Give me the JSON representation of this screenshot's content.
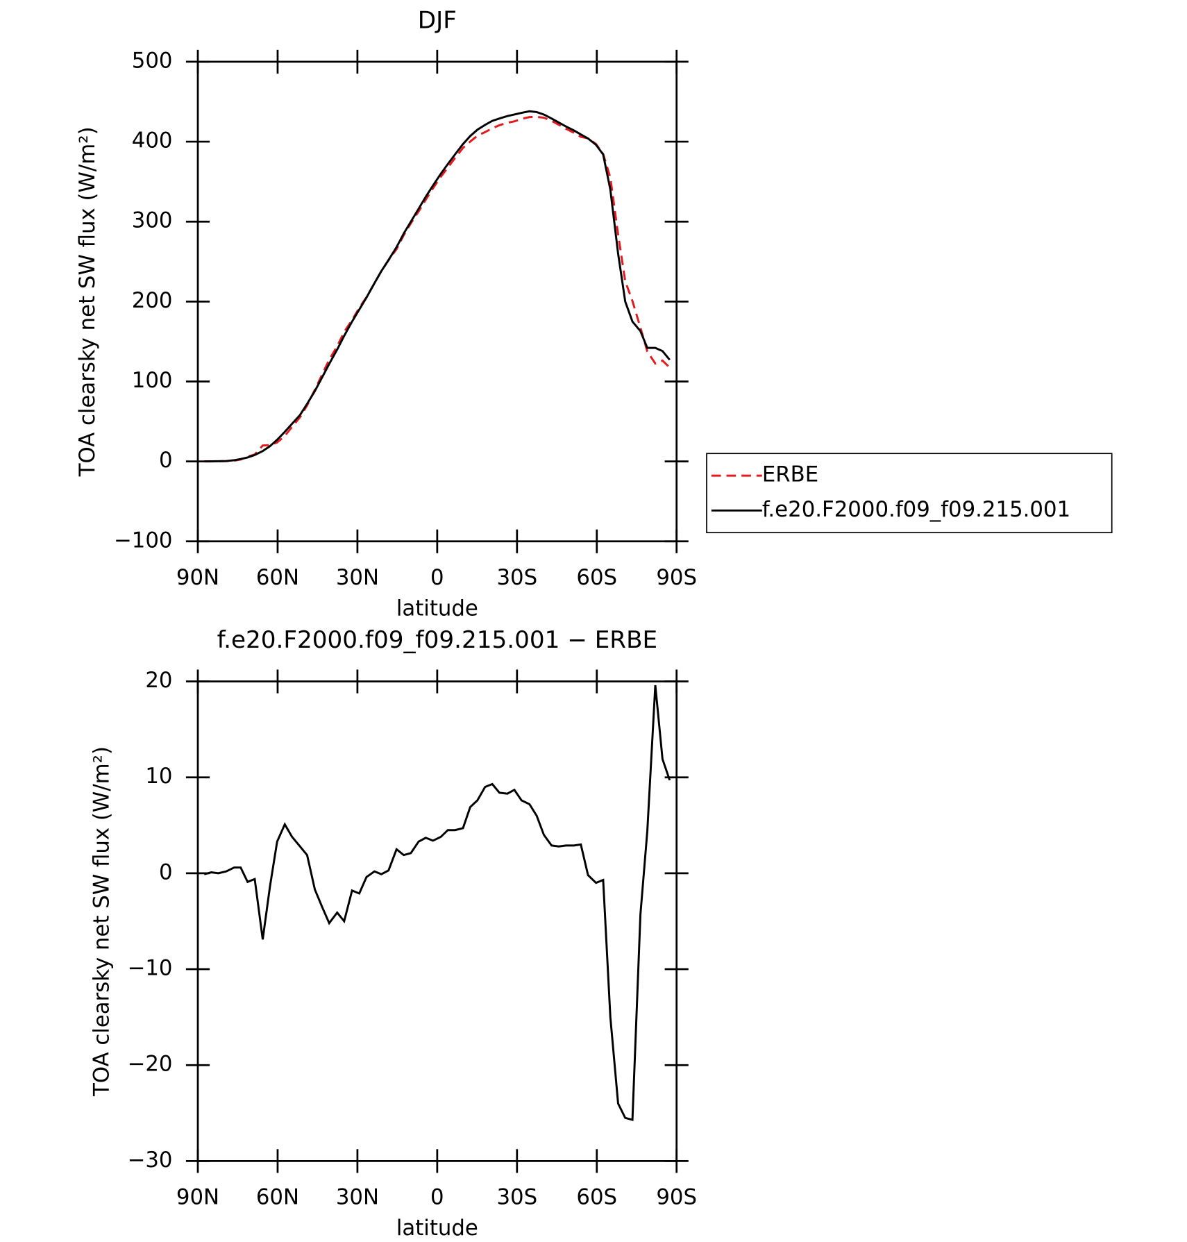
{
  "chart_data": [
    {
      "type": "line",
      "title": "DJF",
      "x_label": "latitude",
      "y_label": "TOA clearsky net SW flux (W/m²)",
      "x": [
        87.6,
        84.9,
        82.3,
        79.3,
        76.3,
        73.9,
        71.3,
        68.6,
        65.6,
        62.9,
        60.2,
        57.3,
        54.6,
        51.6,
        48.9,
        46.0,
        43.3,
        40.6,
        37.6,
        35.0,
        32.0,
        29.3,
        26.6,
        23.6,
        21.0,
        18.3,
        15.3,
        12.6,
        9.9,
        7.0,
        4.3,
        1.6,
        -1.4,
        -4.0,
        -6.7,
        -9.7,
        -12.4,
        -15.1,
        -18.0,
        -20.7,
        -23.4,
        -26.4,
        -29.0,
        -31.7,
        -34.7,
        -37.4,
        -40.1,
        -43.0,
        -45.7,
        -48.4,
        -51.4,
        -54.0,
        -56.7,
        -59.7,
        -62.4,
        -65.1,
        -68.0,
        -70.7,
        -73.4,
        -76.4,
        -79.0,
        -82.0,
        -84.7,
        -87.4
      ],
      "series": [
        {
          "name": "ERBE",
          "color": "#e41a1c",
          "dashed": true,
          "values": [
            0.1,
            0.0,
            0.2,
            0.3,
            0.9,
            2.4,
            5.9,
            8.6,
            19.9,
            20.4,
            23.7,
            31.9,
            43.2,
            55.2,
            70.1,
            89.7,
            108.5,
            127.2,
            144.1,
            162,
            176.8,
            192.1,
            205.4,
            222.8,
            238.1,
            251.7,
            265.5,
            283.1,
            297.9,
            312.7,
            327.3,
            341.6,
            356.2,
            367.5,
            379.5,
            392.3,
            400.1,
            407.4,
            412,
            416.7,
            420.6,
            423.7,
            425.3,
            428.4,
            430.8,
            431,
            430,
            426.1,
            421.2,
            416.1,
            411.1,
            406,
            404.2,
            397,
            384.7,
            355,
            284,
            225.5,
            200.7,
            167.3,
            137.6,
            122.4,
            126.1,
            117.3
          ]
        },
        {
          "name": "f.e20.F2000.f09_f09.215.001",
          "color": "#000000",
          "dashed": false,
          "values": [
            0,
            0.1,
            0.2,
            0.5,
            1.5,
            3,
            5,
            8,
            13,
            19,
            27,
            37,
            47,
            58,
            72,
            88,
            105,
            122,
            140,
            157,
            175,
            190,
            205,
            223,
            238,
            252,
            268,
            285,
            300,
            316,
            331,
            345,
            360,
            372,
            384,
            397,
            407,
            415,
            421,
            426,
            429,
            432,
            434,
            436,
            438,
            437,
            434,
            429,
            424,
            419,
            414,
            409,
            404,
            396,
            384,
            340,
            260,
            200,
            175,
            163,
            142,
            142,
            138,
            127
          ]
        }
      ],
      "legend": "right",
      "xlim": [
        90,
        -90
      ],
      "xticks": [
        {
          "value": 90,
          "label": "90N"
        },
        {
          "value": 60,
          "label": "60N"
        },
        {
          "value": 30,
          "label": "30N"
        },
        0,
        {
          "value": -30,
          "label": "30S"
        },
        {
          "value": -60,
          "label": "60S"
        },
        {
          "value": -90,
          "label": "90S"
        }
      ],
      "ylim": [
        -100,
        500
      ],
      "yticks": [
        {
          "value": -100,
          "label": "−100"
        },
        0,
        100,
        200,
        300,
        400,
        500
      ]
    },
    {
      "type": "line",
      "title": "f.e20.F2000.f09_f09.215.001 − ERBE",
      "x_label": "latitude",
      "y_label": "TOA clearsky net SW flux (W/m²)",
      "x": [
        87.6,
        84.9,
        82.3,
        79.3,
        76.3,
        73.9,
        71.3,
        68.6,
        65.6,
        62.9,
        60.2,
        57.3,
        54.6,
        51.6,
        48.9,
        46.0,
        43.3,
        40.6,
        37.6,
        35.0,
        32.0,
        29.3,
        26.6,
        23.6,
        21.0,
        18.3,
        15.3,
        12.6,
        9.9,
        7.0,
        4.3,
        1.6,
        -1.4,
        -4.0,
        -6.7,
        -9.7,
        -12.4,
        -15.1,
        -18.0,
        -20.7,
        -23.4,
        -26.4,
        -29.0,
        -31.7,
        -34.7,
        -37.4,
        -40.1,
        -43.0,
        -45.7,
        -48.4,
        -51.4,
        -54.0,
        -56.7,
        -59.7,
        -62.4,
        -65.1,
        -68.0,
        -70.7,
        -73.4,
        -76.4,
        -79.0,
        -82.0,
        -84.7,
        -87.4
      ],
      "values": [
        -0.1,
        0.1,
        0,
        0.2,
        0.6,
        0.6,
        -0.9,
        -0.6,
        -6.9,
        -1.4,
        3.3,
        5.1,
        3.8,
        2.8,
        1.9,
        -1.7,
        -3.5,
        -5.2,
        -4.1,
        -5.0,
        -1.8,
        -2.1,
        -0.4,
        0.2,
        -0.1,
        0.3,
        2.5,
        1.9,
        2.1,
        3.3,
        3.7,
        3.4,
        3.8,
        4.5,
        4.5,
        4.7,
        6.9,
        7.6,
        9.0,
        9.3,
        8.4,
        8.3,
        8.7,
        7.6,
        7.2,
        6.0,
        4.0,
        2.9,
        2.8,
        2.9,
        2.9,
        3.0,
        -0.2,
        -1.0,
        -0.7,
        -15,
        -24,
        -25.5,
        -25.7,
        -4.3,
        4.4,
        19.6,
        11.9,
        9.7
      ],
      "color": "#000000",
      "xlim": [
        90,
        -90
      ],
      "xticks": [
        {
          "value": 90,
          "label": "90N"
        },
        {
          "value": 60,
          "label": "60N"
        },
        {
          "value": 30,
          "label": "30N"
        },
        0,
        {
          "value": -30,
          "label": "30S"
        },
        {
          "value": -60,
          "label": "60S"
        },
        {
          "value": -90,
          "label": "90S"
        }
      ],
      "ylim": [
        -30,
        20
      ],
      "yticks": [
        {
          "value": -30,
          "label": "−30"
        },
        {
          "value": -20,
          "label": "−20"
        },
        {
          "value": -10,
          "label": "−10"
        },
        0,
        10,
        20
      ]
    }
  ]
}
